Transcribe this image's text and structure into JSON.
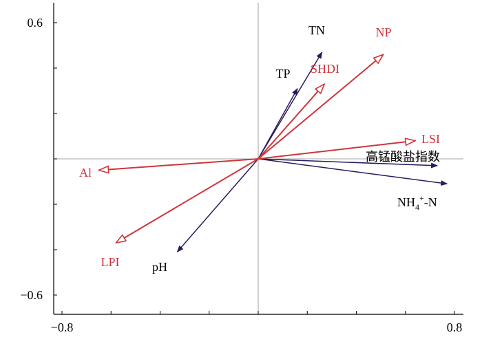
{
  "chart_data": {
    "type": "biplot",
    "title": "",
    "xlabel": "",
    "ylabel": "",
    "xlim": [
      -0.8,
      0.8
    ],
    "ylim": [
      -0.6,
      0.6
    ],
    "x_ticks": [
      -0.8,
      0.8
    ],
    "x_tick_labels": [
      "−0.8",
      "0.8"
    ],
    "y_ticks": [
      0.6,
      -0.6
    ],
    "y_tick_labels": [
      "0.6",
      "−0.6"
    ],
    "grid": false,
    "reference_lines": "x=0 and y=0",
    "colors": {
      "environmental": "#2a1a5e",
      "landscape": "#d0343a",
      "axes": "#000000",
      "reference": "#888888"
    },
    "series": [
      {
        "group": "environmental",
        "arrow_style": "filled",
        "vectors": [
          {
            "label": "TN",
            "x": 0.26,
            "y": 0.47
          },
          {
            "label": "TP",
            "x": 0.16,
            "y": 0.31
          },
          {
            "label": "高锰酸盐指数",
            "x": 0.73,
            "y": -0.03
          },
          {
            "label": "NH4+-N",
            "label_base": "NH",
            "label_sub": "4",
            "label_sup": "+",
            "label_tail": "-N",
            "x": 0.77,
            "y": -0.11
          },
          {
            "label": "pH",
            "x": -0.33,
            "y": -0.41
          }
        ]
      },
      {
        "group": "landscape",
        "arrow_style": "open",
        "vectors": [
          {
            "label": "NP",
            "x": 0.51,
            "y": 0.46
          },
          {
            "label": "SHDI",
            "x": 0.27,
            "y": 0.33
          },
          {
            "label": "LSI",
            "x": 0.64,
            "y": 0.08
          },
          {
            "label": "Al",
            "x": -0.65,
            "y": -0.05
          },
          {
            "label": "LPI",
            "x": -0.58,
            "y": -0.37
          }
        ]
      }
    ]
  }
}
